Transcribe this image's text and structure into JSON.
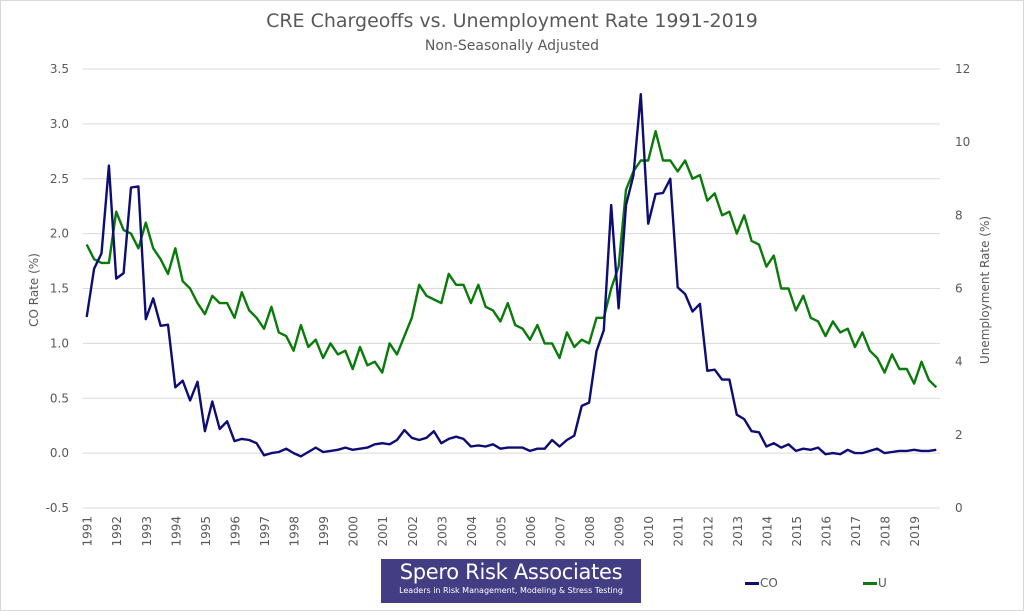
{
  "chart_data": {
    "type": "line",
    "title": "CRE Chargeoffs vs. Unemployment Rate 1991-2019",
    "subtitle": "Non-Seasonally Adjusted",
    "xlabel": "",
    "ylabel": "CO Rate (%)",
    "y2label": "Unemployment Rate (%)",
    "ylim": [
      -0.5,
      3.5
    ],
    "y2lim": [
      0,
      12
    ],
    "yticks": [
      "-0.5",
      "0.0",
      "0.5",
      "1.0",
      "1.5",
      "2.0",
      "2.5",
      "3.0",
      "3.5"
    ],
    "y2ticks": [
      "0",
      "2",
      "4",
      "6",
      "8",
      "10",
      "12"
    ],
    "x_categories": [
      "1991",
      "1992",
      "1993",
      "1994",
      "1995",
      "1996",
      "1997",
      "1998",
      "1999",
      "2000",
      "2001",
      "2002",
      "2003",
      "2004",
      "2005",
      "2006",
      "2007",
      "2008",
      "2009",
      "2010",
      "2011",
      "2012",
      "2013",
      "2014",
      "2015",
      "2016",
      "2017",
      "2018",
      "2019"
    ],
    "frequency": "quarterly",
    "grid": true,
    "legend_position": "bottom-right",
    "series": [
      {
        "name": "CO",
        "axis": "left",
        "color": "#0d0d73",
        "values": [
          1.24,
          1.68,
          1.82,
          2.62,
          1.59,
          1.64,
          2.42,
          2.43,
          1.22,
          1.41,
          1.16,
          1.17,
          0.6,
          0.66,
          0.48,
          0.65,
          0.2,
          0.47,
          0.22,
          0.29,
          0.11,
          0.13,
          0.12,
          0.09,
          -0.02,
          0.0,
          0.01,
          0.04,
          0.0,
          -0.03,
          0.01,
          0.05,
          0.01,
          0.02,
          0.03,
          0.05,
          0.03,
          0.04,
          0.05,
          0.08,
          0.09,
          0.08,
          0.12,
          0.21,
          0.14,
          0.12,
          0.14,
          0.2,
          0.09,
          0.13,
          0.15,
          0.13,
          0.06,
          0.07,
          0.06,
          0.08,
          0.04,
          0.05,
          0.05,
          0.05,
          0.02,
          0.04,
          0.04,
          0.12,
          0.06,
          0.12,
          0.16,
          0.43,
          0.46,
          0.93,
          1.12,
          2.26,
          1.32,
          2.26,
          2.53,
          3.27,
          2.09,
          2.36,
          2.37,
          2.5,
          1.51,
          1.45,
          1.29,
          1.36,
          0.75,
          0.76,
          0.67,
          0.67,
          0.35,
          0.31,
          0.2,
          0.19,
          0.06,
          0.09,
          0.05,
          0.08,
          0.02,
          0.04,
          0.03,
          0.05,
          -0.01,
          0.0,
          -0.01,
          0.03,
          0.0,
          0.0,
          0.02,
          0.04,
          0.0,
          0.01,
          0.02,
          0.02,
          0.03,
          0.02,
          0.02,
          0.03
        ]
      },
      {
        "name": "U",
        "axis": "right",
        "color": "#0a7a0a",
        "values": [
          7.2,
          6.8,
          6.7,
          6.7,
          8.1,
          7.6,
          7.5,
          7.1,
          7.8,
          7.1,
          6.8,
          6.4,
          7.1,
          6.2,
          6.0,
          5.6,
          5.3,
          5.8,
          5.6,
          5.6,
          5.2,
          5.9,
          5.4,
          5.2,
          4.9,
          5.5,
          4.8,
          4.7,
          4.3,
          5.0,
          4.4,
          4.6,
          4.1,
          4.5,
          4.2,
          4.3,
          3.8,
          4.4,
          3.9,
          4.0,
          3.7,
          4.5,
          4.2,
          4.7,
          5.2,
          6.1,
          5.8,
          5.7,
          5.6,
          6.4,
          6.1,
          6.1,
          5.6,
          6.1,
          5.5,
          5.4,
          5.1,
          5.6,
          5.0,
          4.9,
          4.6,
          5.0,
          4.5,
          4.5,
          4.1,
          4.8,
          4.4,
          4.6,
          4.5,
          5.2,
          5.2,
          6.0,
          6.6,
          8.7,
          9.2,
          9.5,
          9.5,
          10.3,
          9.5,
          9.5,
          9.2,
          9.5,
          9.0,
          9.1,
          8.4,
          8.6,
          8.0,
          8.1,
          7.5,
          8.0,
          7.3,
          7.2,
          6.6,
          6.9,
          6.0,
          6.0,
          5.4,
          5.8,
          5.2,
          5.1,
          4.7,
          5.1,
          4.8,
          4.9,
          4.4,
          4.8,
          4.3,
          4.1,
          3.7,
          4.2,
          3.8,
          3.8,
          3.4,
          4.0,
          3.5,
          3.3
        ]
      }
    ]
  },
  "logo": {
    "name": "Spero Risk Associates",
    "tagline": "Leaders in Risk Management, Modeling & Stress Testing"
  },
  "legend": [
    {
      "label": "CO",
      "color": "#0d0d73"
    },
    {
      "label": "U",
      "color": "#0a7a0a"
    }
  ]
}
